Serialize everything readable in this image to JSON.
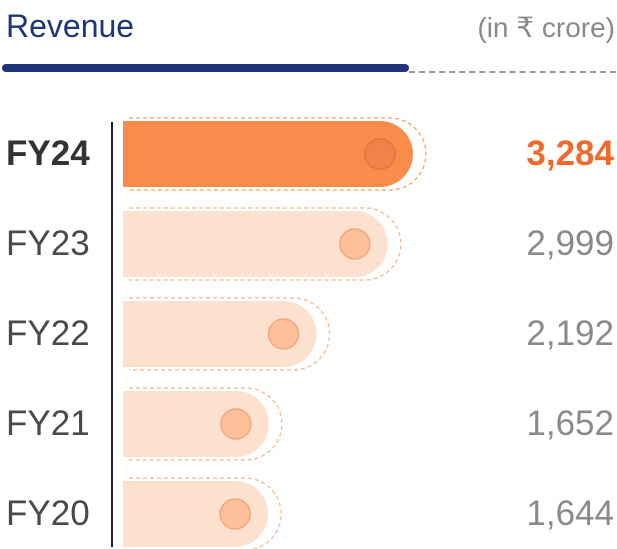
{
  "header": {
    "title": "Revenue",
    "unit": "(in ₹ crore)"
  },
  "colors": {
    "title": "#1f3579",
    "highlight_bar": "#f98c4a",
    "highlight_value": "#ef6a2c",
    "bar": "#fde1cf",
    "dot": "#ffbf9a",
    "dot_highlight": "#f3824a",
    "axis": "#1f1f3a"
  },
  "chart_data": {
    "type": "bar",
    "orientation": "horizontal",
    "categories": [
      "FY24",
      "FY23",
      "FY22",
      "FY21",
      "FY20"
    ],
    "values": [
      3284,
      2999,
      2192,
      1652,
      1644
    ],
    "value_labels": [
      "3,284",
      "2,999",
      "2,192",
      "1,652",
      "1,644"
    ],
    "highlight": "FY24",
    "title": "Revenue",
    "unit": "(in ₹ crore)",
    "grid": false,
    "legend": "none"
  }
}
